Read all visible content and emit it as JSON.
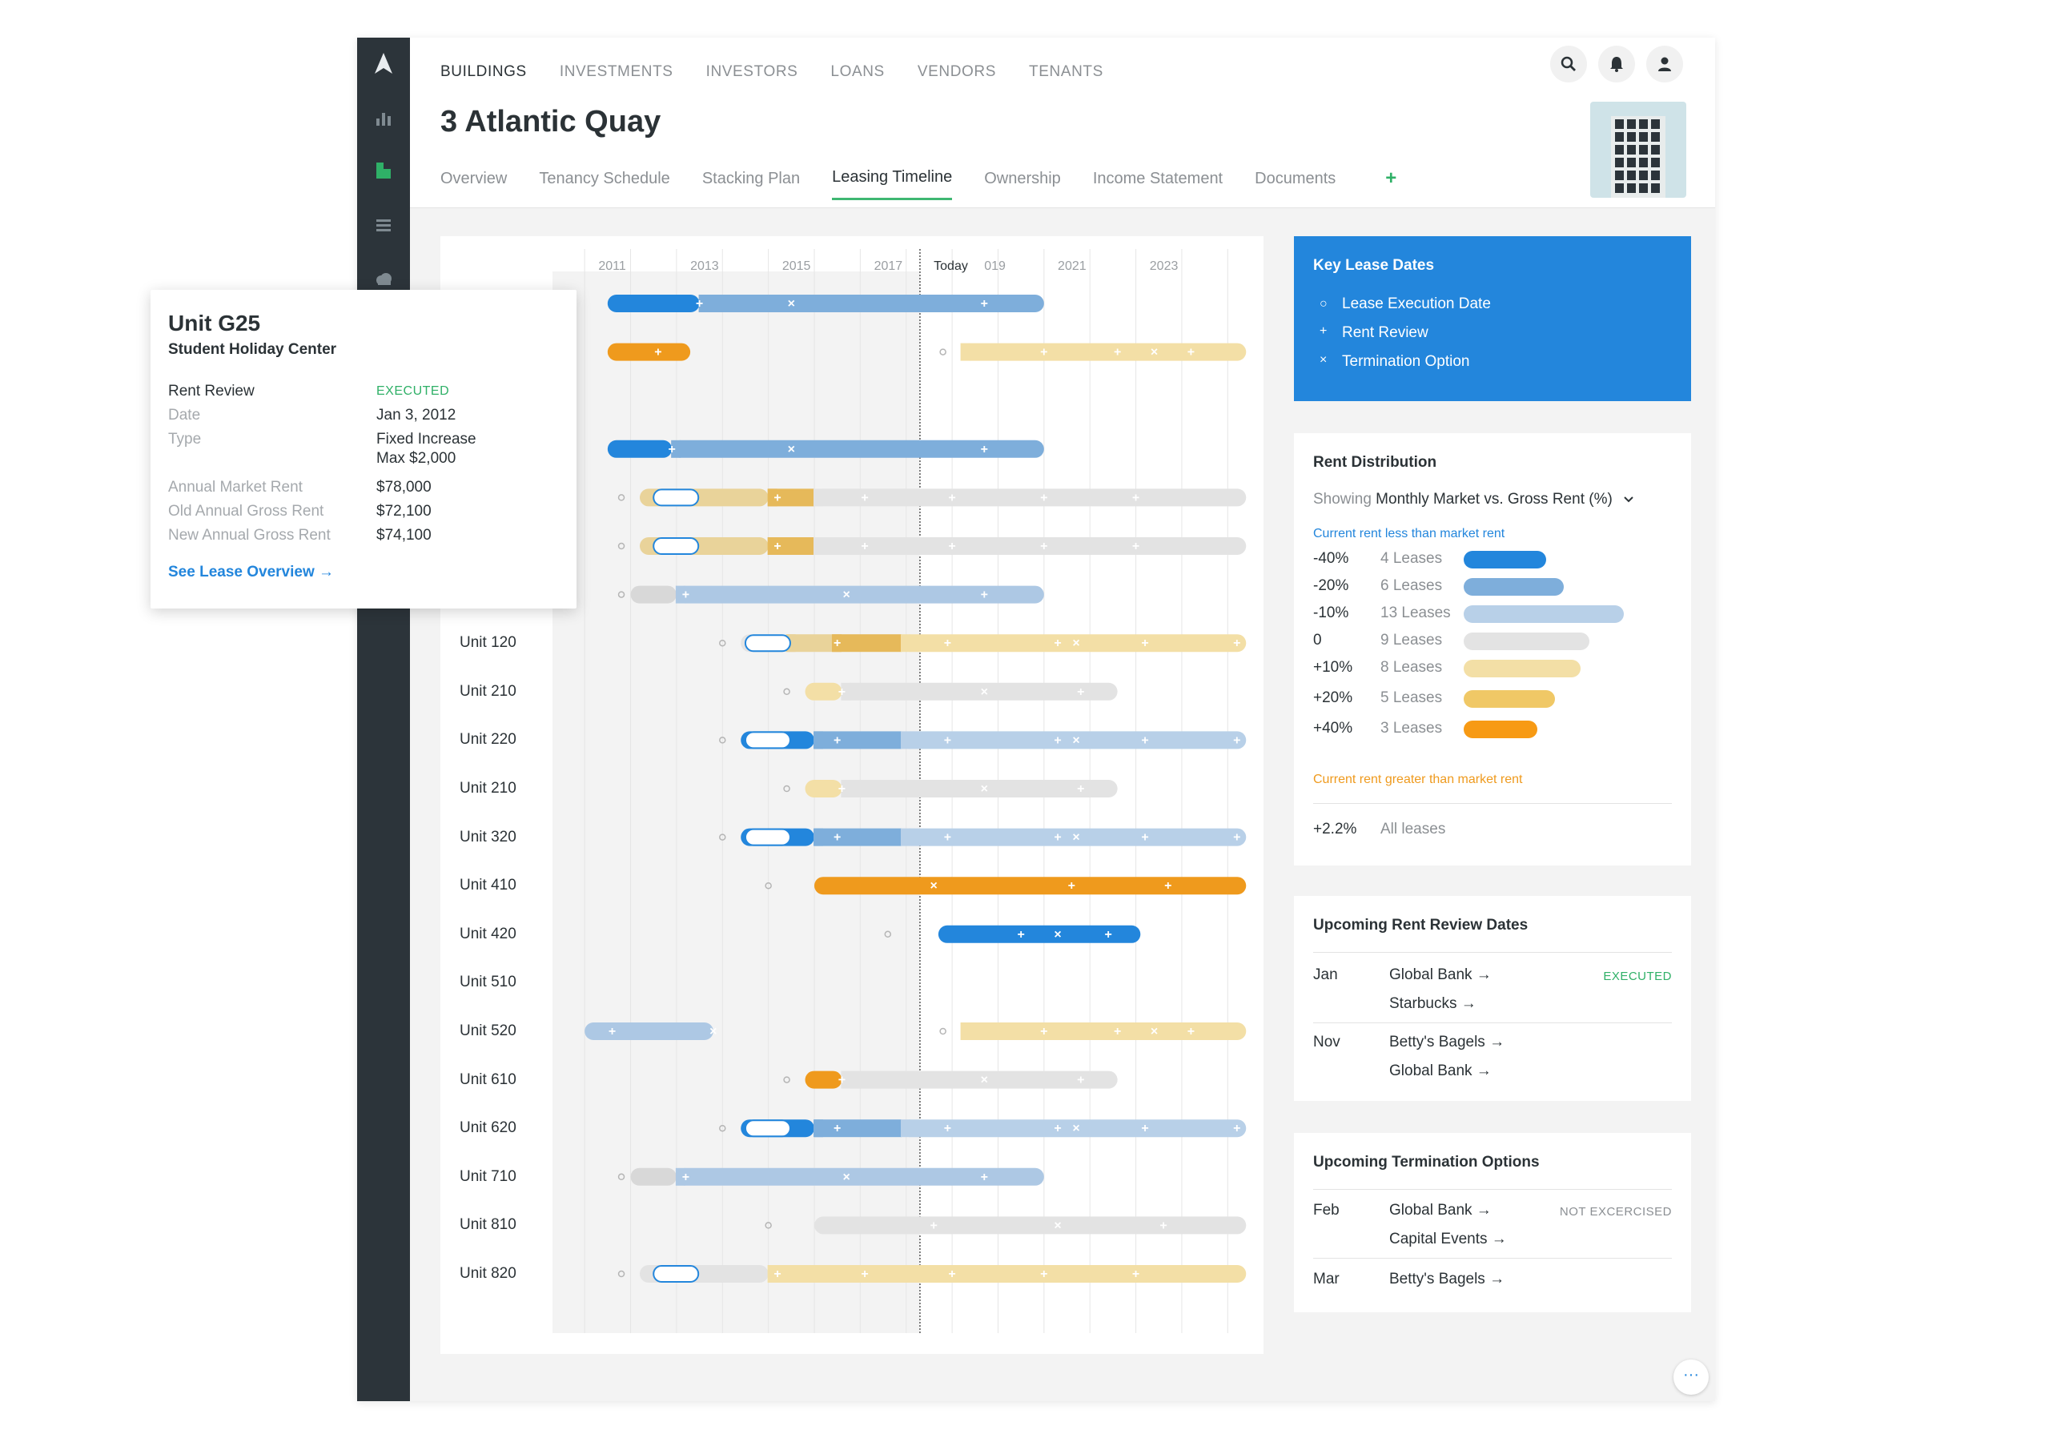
{
  "nav": {
    "items": [
      "BUILDINGS",
      "INVESTMENTS",
      "INVESTORS",
      "LOANS",
      "VENDORS",
      "TENANTS"
    ],
    "active": "BUILDINGS"
  },
  "page": {
    "title": "3 Atlantic Quay"
  },
  "subtabs": {
    "items": [
      "Overview",
      "Tenancy Schedule",
      "Stacking Plan",
      "Leasing Timeline",
      "Ownership",
      "Income Statement",
      "Documents"
    ],
    "active": "Leasing Timeline",
    "add_label": "+"
  },
  "timeline": {
    "year_ticks": [
      "2011",
      "2013",
      "2015",
      "2017",
      "Today",
      "019",
      "2021",
      "2023"
    ],
    "rows": [
      {
        "label": "",
        "segments": [
          {
            "from": 2010.5,
            "to": 2012.5,
            "color": "#2386dc"
          },
          {
            "from": 2012.5,
            "to": 2020.0,
            "color": "#7eaedb"
          }
        ],
        "marks": [
          {
            "x": 2012.5,
            "t": "+"
          },
          {
            "x": 2014.5,
            "t": "x"
          },
          {
            "x": 2018.7,
            "t": "+"
          }
        ]
      },
      {
        "label": "",
        "segments": [
          {
            "from": 2010.5,
            "to": 2012.3,
            "color": "#ef9a1d"
          },
          {
            "from": 2018.2,
            "to": 2024.4,
            "color": "#f3dfa6"
          }
        ],
        "marks": [
          {
            "x": 2011.6,
            "t": "+"
          },
          {
            "x": 2020.0,
            "t": "+"
          },
          {
            "x": 2021.6,
            "t": "+"
          },
          {
            "x": 2022.4,
            "t": "x"
          },
          {
            "x": 2023.2,
            "t": "+"
          }
        ],
        "dots": [
          2017.8
        ]
      },
      {
        "label": "",
        "segments": [],
        "marks": []
      },
      {
        "label": "",
        "segments": [
          {
            "from": 2010.5,
            "to": 2011.9,
            "color": "#2386dc"
          },
          {
            "from": 2011.9,
            "to": 2020.0,
            "color": "#7eaedb"
          }
        ],
        "marks": [
          {
            "x": 2011.9,
            "t": "+"
          },
          {
            "x": 2014.5,
            "t": "x"
          },
          {
            "x": 2018.7,
            "t": "+"
          }
        ]
      },
      {
        "label": "",
        "segments": [
          {
            "from": 2011.2,
            "to": 2014.0,
            "color": "#e9d39a"
          },
          {
            "from": 2014.0,
            "to": 2015.0,
            "color": "#e6b95a"
          },
          {
            "from": 2015.0,
            "to": 2024.4,
            "color": "#e3e3e3"
          }
        ],
        "marks": [
          {
            "x": 2014.2,
            "t": "+"
          },
          {
            "x": 2016.1,
            "t": "+"
          },
          {
            "x": 2018.0,
            "t": "+"
          },
          {
            "x": 2020.0,
            "t": "+"
          },
          {
            "x": 2022.0,
            "t": "+"
          }
        ],
        "dots": [
          2010.8
        ],
        "pill": 2011.5
      },
      {
        "label": "",
        "segments": [
          {
            "from": 2011.2,
            "to": 2014.0,
            "color": "#e9d39a"
          },
          {
            "from": 2014.0,
            "to": 2015.0,
            "color": "#e6b95a"
          },
          {
            "from": 2015.0,
            "to": 2024.4,
            "color": "#e3e3e3"
          }
        ],
        "marks": [
          {
            "x": 2014.2,
            "t": "+"
          },
          {
            "x": 2016.1,
            "t": "+"
          },
          {
            "x": 2018.0,
            "t": "+"
          },
          {
            "x": 2020.0,
            "t": "+"
          },
          {
            "x": 2022.0,
            "t": "+"
          }
        ],
        "dots": [
          2010.8
        ],
        "pill": 2011.5
      },
      {
        "label": "",
        "segments": [
          {
            "from": 2011.0,
            "to": 2012.0,
            "color": "#d8d8d8"
          },
          {
            "from": 2012.0,
            "to": 2020.0,
            "color": "#adc8e4"
          }
        ],
        "marks": [
          {
            "x": 2012.2,
            "t": "+"
          },
          {
            "x": 2015.7,
            "t": "x"
          },
          {
            "x": 2018.7,
            "t": "+"
          }
        ],
        "dots": [
          2010.8
        ]
      },
      {
        "label": "Unit 120",
        "segments": [
          {
            "from": 2013.4,
            "to": 2014.4,
            "color": "#e3e3e3"
          },
          {
            "from": 2014.4,
            "to": 2015.4,
            "color": "#e9d39a"
          },
          {
            "from": 2015.4,
            "to": 2016.9,
            "color": "#e6b95a"
          },
          {
            "from": 2016.9,
            "to": 2024.4,
            "color": "#f3dfa6"
          }
        ],
        "marks": [
          {
            "x": 2015.5,
            "t": "+"
          },
          {
            "x": 2017.9,
            "t": "+"
          },
          {
            "x": 2020.3,
            "t": "+"
          },
          {
            "x": 2020.7,
            "t": "x"
          },
          {
            "x": 2022.2,
            "t": "+"
          },
          {
            "x": 2024.2,
            "t": "+"
          }
        ],
        "dots": [
          2013.0
        ],
        "pill": 2013.5
      },
      {
        "label": "Unit 210",
        "segments": [
          {
            "from": 2014.8,
            "to": 2015.6,
            "color": "#f3dfa6"
          },
          {
            "from": 2015.6,
            "to": 2021.6,
            "color": "#e3e3e3"
          }
        ],
        "marks": [
          {
            "x": 2015.6,
            "t": "+"
          },
          {
            "x": 2018.7,
            "t": "x"
          },
          {
            "x": 2020.8,
            "t": "+"
          }
        ],
        "dots": [
          2014.4
        ]
      },
      {
        "label": "Unit 220",
        "segments": [
          {
            "from": 2013.4,
            "to": 2015.0,
            "color": "#2386dc"
          },
          {
            "from": 2015.0,
            "to": 2016.9,
            "color": "#7eaedb"
          },
          {
            "from": 2016.9,
            "to": 2024.4,
            "color": "#b8d0e8"
          }
        ],
        "marks": [
          {
            "x": 2015.5,
            "t": "+"
          },
          {
            "x": 2017.9,
            "t": "+"
          },
          {
            "x": 2020.3,
            "t": "+"
          },
          {
            "x": 2020.7,
            "t": "x"
          },
          {
            "x": 2022.2,
            "t": "+"
          },
          {
            "x": 2024.2,
            "t": "+"
          }
        ],
        "dots": [
          2013.0
        ],
        "pill": 2013.5
      },
      {
        "label": "Unit 210",
        "segments": [
          {
            "from": 2014.8,
            "to": 2015.6,
            "color": "#f3dfa6"
          },
          {
            "from": 2015.6,
            "to": 2021.6,
            "color": "#e3e3e3"
          }
        ],
        "marks": [
          {
            "x": 2015.6,
            "t": "+"
          },
          {
            "x": 2018.7,
            "t": "x"
          },
          {
            "x": 2020.8,
            "t": "+"
          }
        ],
        "dots": [
          2014.4
        ]
      },
      {
        "label": "Unit 320",
        "segments": [
          {
            "from": 2013.4,
            "to": 2015.0,
            "color": "#2386dc"
          },
          {
            "from": 2015.0,
            "to": 2016.9,
            "color": "#7eaedb"
          },
          {
            "from": 2016.9,
            "to": 2024.4,
            "color": "#b8d0e8"
          }
        ],
        "marks": [
          {
            "x": 2015.5,
            "t": "+"
          },
          {
            "x": 2017.9,
            "t": "+"
          },
          {
            "x": 2020.3,
            "t": "+"
          },
          {
            "x": 2020.7,
            "t": "x"
          },
          {
            "x": 2022.2,
            "t": "+"
          },
          {
            "x": 2024.2,
            "t": "+"
          }
        ],
        "dots": [
          2013.0
        ],
        "pill": 2013.5
      },
      {
        "label": "Unit 410",
        "segments": [
          {
            "from": 2015.0,
            "to": 2024.4,
            "color": "#ef9a1d"
          }
        ],
        "marks": [
          {
            "x": 2017.6,
            "t": "x"
          },
          {
            "x": 2020.6,
            "t": "+"
          },
          {
            "x": 2022.7,
            "t": "+"
          }
        ],
        "dots": [
          2014.0
        ]
      },
      {
        "label": "Unit 420",
        "segments": [
          {
            "from": 2017.7,
            "to": 2022.1,
            "color": "#2386dc"
          }
        ],
        "marks": [
          {
            "x": 2019.5,
            "t": "+"
          },
          {
            "x": 2020.3,
            "t": "x"
          },
          {
            "x": 2021.4,
            "t": "+"
          }
        ],
        "dots": [
          2016.6
        ]
      },
      {
        "label": "Unit 510",
        "segments": [],
        "marks": []
      },
      {
        "label": "Unit 520",
        "segments": [
          {
            "from": 2010.0,
            "to": 2012.8,
            "color": "#adc8e4"
          },
          {
            "from": 2018.2,
            "to": 2024.4,
            "color": "#f3dfa6"
          }
        ],
        "marks": [
          {
            "x": 2010.6,
            "t": "+"
          },
          {
            "x": 2012.8,
            "t": "x"
          },
          {
            "x": 2020.0,
            "t": "+"
          },
          {
            "x": 2021.6,
            "t": "+"
          },
          {
            "x": 2022.4,
            "t": "x"
          },
          {
            "x": 2023.2,
            "t": "+"
          }
        ],
        "dots": [
          2017.8
        ]
      },
      {
        "label": "Unit 610",
        "segments": [
          {
            "from": 2014.8,
            "to": 2015.6,
            "color": "#ef9a1d"
          },
          {
            "from": 2015.6,
            "to": 2021.6,
            "color": "#e3e3e3"
          }
        ],
        "marks": [
          {
            "x": 2015.6,
            "t": "+"
          },
          {
            "x": 2018.7,
            "t": "x"
          },
          {
            "x": 2020.8,
            "t": "+"
          }
        ],
        "dots": [
          2014.4
        ]
      },
      {
        "label": "Unit 620",
        "segments": [
          {
            "from": 2013.4,
            "to": 2015.0,
            "color": "#2386dc"
          },
          {
            "from": 2015.0,
            "to": 2016.9,
            "color": "#7eaedb"
          },
          {
            "from": 2016.9,
            "to": 2024.4,
            "color": "#b8d0e8"
          }
        ],
        "marks": [
          {
            "x": 2015.5,
            "t": "+"
          },
          {
            "x": 2017.9,
            "t": "+"
          },
          {
            "x": 2020.3,
            "t": "+"
          },
          {
            "x": 2020.7,
            "t": "x"
          },
          {
            "x": 2022.2,
            "t": "+"
          },
          {
            "x": 2024.2,
            "t": "+"
          }
        ],
        "dots": [
          2013.0
        ],
        "pill": 2013.5
      },
      {
        "label": "Unit 710",
        "segments": [
          {
            "from": 2011.0,
            "to": 2012.0,
            "color": "#d8d8d8"
          },
          {
            "from": 2012.0,
            "to": 2020.0,
            "color": "#adc8e4"
          }
        ],
        "marks": [
          {
            "x": 2012.2,
            "t": "+"
          },
          {
            "x": 2015.7,
            "t": "x"
          },
          {
            "x": 2018.7,
            "t": "+"
          }
        ],
        "dots": [
          2010.8
        ]
      },
      {
        "label": "Unit 810",
        "segments": [
          {
            "from": 2015.0,
            "to": 2024.4,
            "color": "#e3e3e3"
          }
        ],
        "marks": [
          {
            "x": 2017.6,
            "t": "+"
          },
          {
            "x": 2020.3,
            "t": "x"
          },
          {
            "x": 2022.6,
            "t": "+"
          }
        ],
        "dots": [
          2014.0
        ]
      },
      {
        "label": "Unit 820",
        "segments": [
          {
            "from": 2011.2,
            "to": 2014.0,
            "color": "#e3e3e3"
          },
          {
            "from": 2014.0,
            "to": 2024.4,
            "color": "#f3dfa6"
          }
        ],
        "marks": [
          {
            "x": 2014.2,
            "t": "+"
          },
          {
            "x": 2016.1,
            "t": "+"
          },
          {
            "x": 2018.0,
            "t": "+"
          },
          {
            "x": 2020.0,
            "t": "+"
          },
          {
            "x": 2022.0,
            "t": "+"
          }
        ],
        "dots": [
          2010.8
        ],
        "pill": 2011.5
      }
    ]
  },
  "key_lease_dates": {
    "title": "Key Lease Dates",
    "items": [
      {
        "marker": "○",
        "label": "Lease Execution Date"
      },
      {
        "marker": "+",
        "label": "Rent Review"
      },
      {
        "marker": "×",
        "label": "Termination Option"
      }
    ]
  },
  "rent_distribution": {
    "title": "Rent Distribution",
    "showing_prefix": "Showing",
    "showing_value": "Monthly Market vs. Gross Rent (%)",
    "top_note": "Current rent less than market rent",
    "bottom_note": "Current rent greater than market rent",
    "rows": [
      {
        "pct": "-40%",
        "count": "4 Leases",
        "n": 4,
        "color": "#2386dc"
      },
      {
        "pct": "-20%",
        "count": "6 Leases",
        "n": 6,
        "color": "#7eaedb"
      },
      {
        "pct": "-10%",
        "count": "13 Leases",
        "n": 13,
        "color": "#b8d0e8"
      },
      {
        "pct": "0",
        "count": "9 Leases",
        "n": 9,
        "color": "#e3e3e3"
      },
      {
        "pct": "+10%",
        "count": "8 Leases",
        "n": 8,
        "color": "#f3dfa6"
      },
      {
        "pct": "+20%",
        "count": "5 Leases",
        "n": 5,
        "color": "#f0c866"
      },
      {
        "pct": "+40%",
        "count": "3 Leases",
        "n": 3,
        "color": "#f79a14"
      }
    ],
    "total_pct": "+2.2%",
    "total_label": "All leases"
  },
  "rent_reviews": {
    "title": "Upcoming Rent Review Dates",
    "groups": [
      {
        "month": "Jan",
        "tenants": [
          "Global Bank →",
          "Starbucks →"
        ],
        "status": "EXECUTED"
      },
      {
        "month": "Nov",
        "tenants": [
          "Betty's Bagels →",
          "Global Bank →"
        ],
        "status": ""
      }
    ]
  },
  "termination_options": {
    "title": "Upcoming Termination Options",
    "groups": [
      {
        "month": "Feb",
        "tenants": [
          "Global Bank →",
          "Capital Events →"
        ],
        "status": "NOT EXCERCISED"
      },
      {
        "month": "Mar",
        "tenants": [
          "Betty's Bagels →"
        ],
        "status": ""
      }
    ]
  },
  "popup": {
    "title": "Unit G25",
    "subtitle": "Student Holiday Center",
    "event": "Rent Review",
    "status": "EXECUTED",
    "date_label": "Date",
    "date_value": "Jan 3, 2012",
    "type_label": "Type",
    "type_value_1": "Fixed Increase",
    "type_value_2": "Max $2,000",
    "market_label": "Annual Market Rent",
    "market_value": "$78,000",
    "old_label": "Old Annual Gross Rent",
    "old_value": "$72,100",
    "new_label": "New Annual Gross Rent",
    "new_value": "$74,100",
    "link": "See Lease Overview →"
  },
  "more_button": "···",
  "colors": {
    "accent": "#2386dc",
    "green": "#2fb067",
    "orange": "#ef9a1d"
  }
}
